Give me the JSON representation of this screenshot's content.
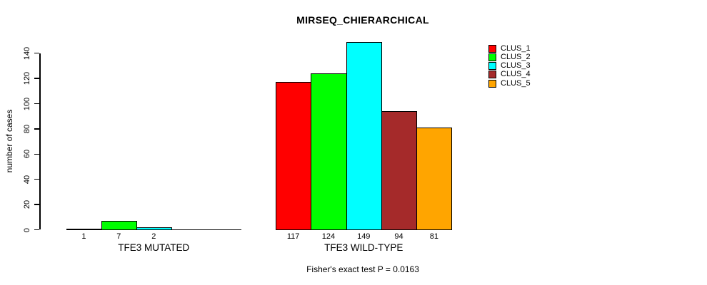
{
  "title": "MIRSEQ_CHIERARCHICAL",
  "footer": "Fisher's exact test P = 0.0163",
  "chart_data": {
    "type": "bar",
    "title": "MIRSEQ_CHIERARCHICAL",
    "xlabel": "",
    "ylabel": "number of cases",
    "ylim": [
      0,
      140
    ],
    "yticks": [
      0,
      20,
      40,
      60,
      80,
      100,
      120,
      140
    ],
    "grid": false,
    "legend_position": "top-right",
    "categories": [
      "TFE3 MUTATED",
      "TFE3 WILD-TYPE"
    ],
    "series": [
      {
        "name": "CLUS_1",
        "color": "#ff0000",
        "values": [
          1,
          117
        ]
      },
      {
        "name": "CLUS_2",
        "color": "#00ff00",
        "values": [
          7,
          124
        ]
      },
      {
        "name": "CLUS_3",
        "color": "#00ffff",
        "values": [
          2,
          149
        ]
      },
      {
        "name": "CLUS_4",
        "color": "#a52a2a",
        "values": [
          0,
          94
        ]
      },
      {
        "name": "CLUS_5",
        "color": "#ffa500",
        "values": [
          0,
          81
        ]
      }
    ],
    "bar_labels": [
      [
        "1",
        "7",
        "2",
        "",
        ""
      ],
      [
        "117",
        "124",
        "149",
        "94",
        "81"
      ]
    ],
    "annotation": "Fisher's exact test P = 0.0163"
  }
}
